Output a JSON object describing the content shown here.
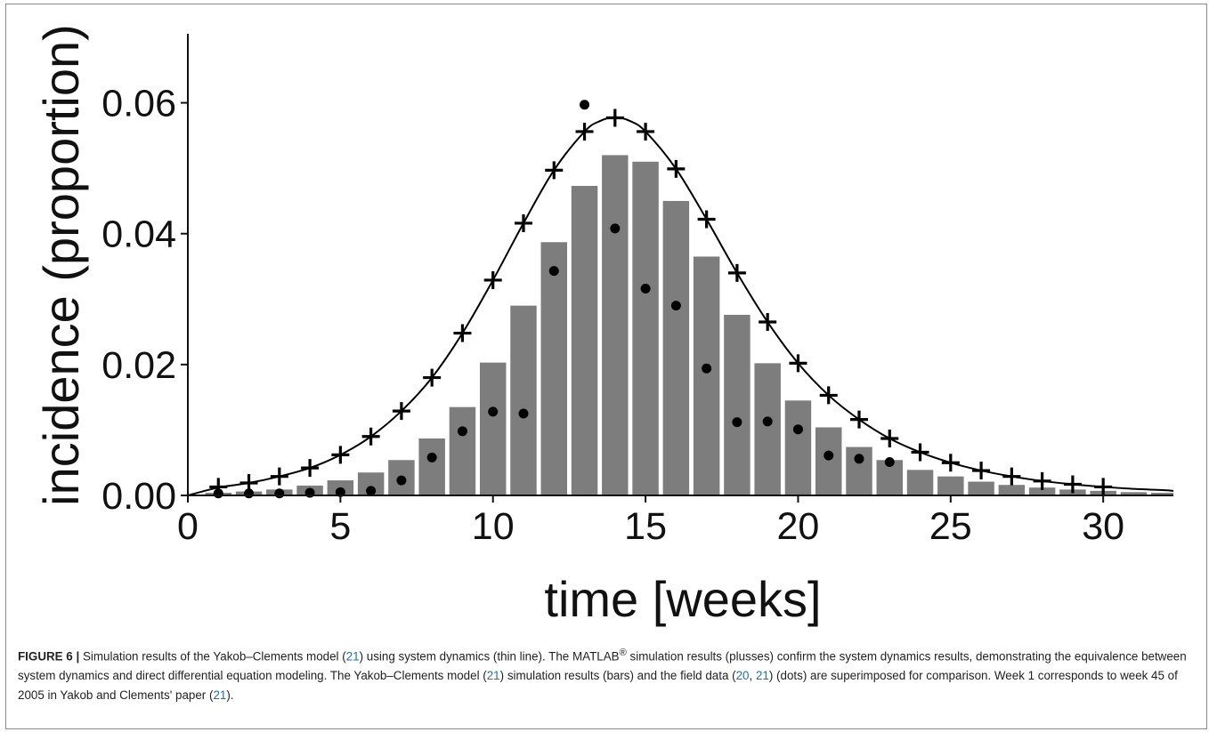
{
  "chart_data": {
    "type": "bar",
    "xlabel": "time [weeks]",
    "ylabel": "incidence (proportion)",
    "xlim": [
      0,
      32.3
    ],
    "ylim": [
      0,
      0.07
    ],
    "xticks": [
      0,
      5,
      10,
      15,
      20,
      25,
      30
    ],
    "xtick_labels": [
      "0",
      "5",
      "10",
      "15",
      "20",
      "25",
      "30"
    ],
    "yticks": [
      0,
      0.02,
      0.04,
      0.06
    ],
    "ytick_labels": [
      "0.00",
      "0.02",
      "0.04",
      "0.06"
    ],
    "grid": false,
    "legend": "none",
    "series": [
      {
        "kind": "bar",
        "color": "#7d7d7d",
        "x": [
          1,
          2,
          3,
          4,
          5,
          6,
          7,
          8,
          9,
          10,
          11,
          12,
          13,
          14,
          15,
          16,
          17,
          18,
          19,
          20,
          21,
          22,
          23,
          24,
          25,
          26,
          27,
          28,
          29,
          30,
          31,
          32
        ],
        "values": [
          0.0004,
          0.0006,
          0.0009,
          0.0015,
          0.0023,
          0.0035,
          0.0054,
          0.0087,
          0.0135,
          0.0203,
          0.029,
          0.0387,
          0.0473,
          0.052,
          0.051,
          0.045,
          0.0365,
          0.0276,
          0.0202,
          0.0145,
          0.0104,
          0.0074,
          0.0054,
          0.0039,
          0.0029,
          0.0021,
          0.0016,
          0.0012,
          0.0009,
          0.0007,
          0.0005,
          0.0004
        ]
      },
      {
        "kind": "scatter-dot",
        "color": "#000000",
        "x": [
          1,
          2,
          3,
          4,
          5,
          6,
          7,
          8,
          9,
          10,
          11,
          12,
          13,
          14,
          15,
          16,
          17,
          18,
          19,
          20,
          21,
          22,
          23
        ],
        "values": [
          0.0003,
          0.0003,
          0.0003,
          0.0004,
          0.0005,
          0.0007,
          0.0023,
          0.0058,
          0.0098,
          0.0128,
          0.0125,
          0.0343,
          0.0597,
          0.0408,
          0.0316,
          0.029,
          0.0194,
          0.0112,
          0.0113,
          0.0101,
          0.0061,
          0.0056,
          0.0051
        ]
      },
      {
        "kind": "scatter-plus",
        "color": "#000000",
        "x": [
          1,
          2,
          3,
          4,
          5,
          6,
          7,
          8,
          9,
          10,
          11,
          12,
          13,
          14,
          15,
          16,
          17,
          18,
          19,
          20,
          21,
          22,
          23,
          24,
          25,
          26,
          27,
          28,
          29,
          30
        ],
        "values": [
          0.0013,
          0.0019,
          0.0029,
          0.0042,
          0.0062,
          0.009,
          0.0129,
          0.018,
          0.0248,
          0.0329,
          0.0416,
          0.0497,
          0.0556,
          0.0577,
          0.0556,
          0.0499,
          0.0422,
          0.034,
          0.0265,
          0.0202,
          0.0153,
          0.0116,
          0.0087,
          0.0066,
          0.005,
          0.0038,
          0.0029,
          0.0022,
          0.0017,
          0.0013
        ]
      },
      {
        "kind": "line",
        "color": "#000000",
        "x": [
          0,
          1,
          2,
          3,
          4,
          5,
          6,
          7,
          8,
          9,
          10,
          11,
          12,
          13,
          13.5,
          14,
          14.5,
          15,
          16,
          17,
          18,
          19,
          20,
          21,
          22,
          23,
          24,
          25,
          26,
          27,
          28,
          29,
          30,
          31,
          32,
          32.3
        ],
        "values": [
          0.0,
          0.0012,
          0.0019,
          0.0029,
          0.0042,
          0.0062,
          0.009,
          0.0129,
          0.018,
          0.0248,
          0.0329,
          0.0416,
          0.0497,
          0.0556,
          0.0572,
          0.0578,
          0.0572,
          0.0556,
          0.0499,
          0.0422,
          0.034,
          0.0265,
          0.0202,
          0.0153,
          0.0116,
          0.0087,
          0.0066,
          0.005,
          0.0038,
          0.0029,
          0.0022,
          0.0017,
          0.0013,
          0.001,
          0.0008,
          0.0007
        ]
      }
    ]
  },
  "caption": {
    "label": "FIGURE 6 |",
    "segments": [
      {
        "text": " Simulation results of the Yakob–Clements model (",
        "ref": false
      },
      {
        "text": "21",
        "ref": true
      },
      {
        "text": ") using system dynamics (thin line). The MATLAB",
        "ref": false
      },
      {
        "text": "®",
        "sup": true
      },
      {
        "text": " simulation results (plusses) confirm the system dynamics results, demonstrating the equivalence between system dynamics and direct differential equation modeling. The Yakob–Clements model (",
        "ref": false
      },
      {
        "text": "21",
        "ref": true
      },
      {
        "text": ") simulation results (bars) and the field data (",
        "ref": false
      },
      {
        "text": "20",
        "ref": true
      },
      {
        "text": ", ",
        "ref": false
      },
      {
        "text": "21",
        "ref": true
      },
      {
        "text": ") (dots) are superimposed for comparison. Week 1 corresponds to week 45 of 2005 in Yakob and Clements' paper (",
        "ref": false
      },
      {
        "text": "21",
        "ref": true
      },
      {
        "text": ").",
        "ref": false
      }
    ]
  }
}
